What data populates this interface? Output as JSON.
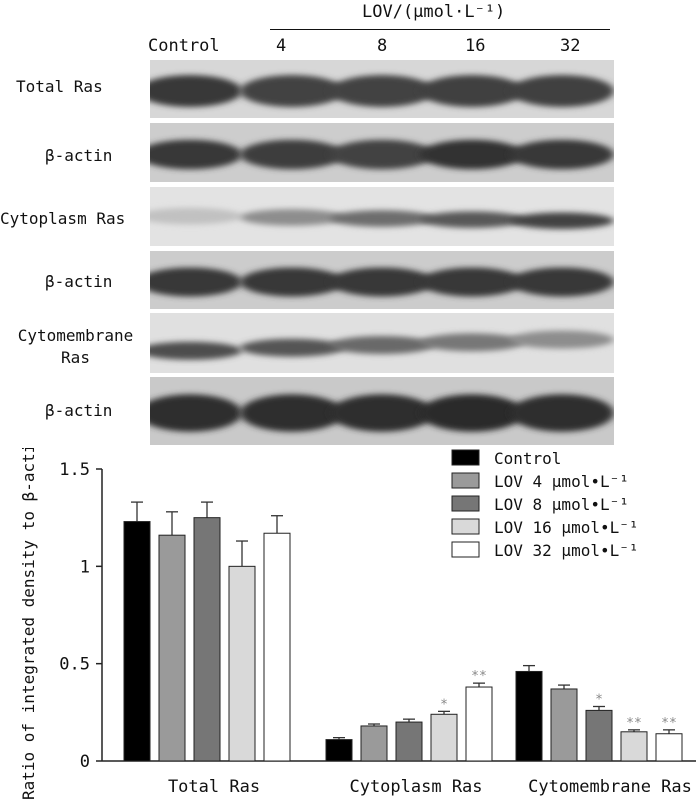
{
  "blot": {
    "treatment_label": "LOV/(μmol·L⁻¹)",
    "control_label": "Control",
    "concentrations": [
      "4",
      "8",
      "16",
      "32"
    ],
    "rows": [
      {
        "label": "Total Ras",
        "bg": "#d7d7d7",
        "intensities": [
          0.85,
          0.8,
          0.8,
          0.82,
          0.82
        ],
        "thickness": 0.55,
        "slant": 0.0
      },
      {
        "label": "β-actin",
        "bg": "#cdcdcd",
        "intensities": [
          0.85,
          0.83,
          0.8,
          0.88,
          0.85
        ],
        "thickness": 0.5,
        "slant": 0.0
      },
      {
        "label": "Cytoplasm Ras",
        "bg": "#e3e3e3",
        "intensities": [
          0.2,
          0.45,
          0.6,
          0.7,
          0.8
        ],
        "thickness": 0.28,
        "slant": 0.05
      },
      {
        "label": "β-actin",
        "bg": "#cccccc",
        "intensities": [
          0.85,
          0.85,
          0.85,
          0.85,
          0.85
        ],
        "thickness": 0.5,
        "slant": 0.0
      },
      {
        "label": "Cytomembrane Ras",
        "bg": "#e0e0e0",
        "intensities": [
          0.75,
          0.72,
          0.62,
          0.55,
          0.45
        ],
        "thickness": 0.3,
        "slant": -0.12
      },
      {
        "label": "β-actin",
        "bg": "#c9c9c9",
        "intensities": [
          0.9,
          0.9,
          0.9,
          0.92,
          0.9
        ],
        "thickness": 0.55,
        "slant": 0.0
      }
    ]
  },
  "chart_data": {
    "type": "bar",
    "ylabel": "Ratio of integrated density to β-actin",
    "ylim": [
      0,
      1.5
    ],
    "yticks": [
      0,
      0.5,
      1,
      1.5
    ],
    "ytick_labels": [
      "0",
      "0.5",
      "1",
      "1.5"
    ],
    "categories": [
      "Total Ras",
      "Cytoplasm Ras",
      "Cytomembrane Ras"
    ],
    "series": [
      {
        "name": "Control",
        "color": "#000000",
        "values": [
          1.23,
          0.11,
          0.46
        ],
        "errors": [
          0.1,
          0.01,
          0.03
        ],
        "sig": [
          "",
          "",
          ""
        ]
      },
      {
        "name": "LOV 4 μmol•L⁻¹",
        "color": "#9a9a9a",
        "values": [
          1.16,
          0.18,
          0.37
        ],
        "errors": [
          0.12,
          0.01,
          0.02
        ],
        "sig": [
          "",
          "",
          ""
        ]
      },
      {
        "name": "LOV 8 μmol•L⁻¹",
        "color": "#767676",
        "values": [
          1.25,
          0.2,
          0.26
        ],
        "errors": [
          0.08,
          0.015,
          0.02
        ],
        "sig": [
          "",
          "",
          "*"
        ]
      },
      {
        "name": "LOV 16 μmol•L⁻¹",
        "color": "#d9d9d9",
        "values": [
          1.0,
          0.24,
          0.15
        ],
        "errors": [
          0.13,
          0.015,
          0.01
        ],
        "sig": [
          "",
          "*",
          "**"
        ]
      },
      {
        "name": "LOV 32 μmol•L⁻¹",
        "color": "#ffffff",
        "values": [
          1.17,
          0.38,
          0.14
        ],
        "errors": [
          0.09,
          0.02,
          0.02
        ],
        "sig": [
          "",
          "**",
          "**"
        ]
      }
    ],
    "legend_position": "top-right",
    "grid": false
  }
}
